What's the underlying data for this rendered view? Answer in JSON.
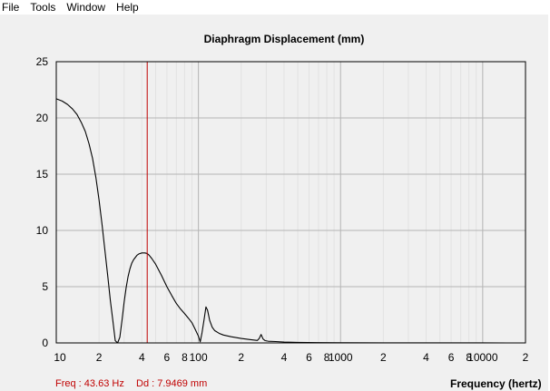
{
  "menu": {
    "items": [
      "File",
      "Tools",
      "Window",
      "Help"
    ]
  },
  "status": {
    "freq": "Freq : 43.63 Hz",
    "dd": "Dd : 7.9469 mm"
  },
  "chart_data": {
    "type": "line",
    "title": "Diaphragm Displacement (mm)",
    "xlabel": "Frequency (hertz)",
    "ylabel": "",
    "xscale": "log",
    "xlim": [
      10,
      20000
    ],
    "ylim": [
      0,
      25
    ],
    "y_ticks": [
      0,
      5,
      10,
      15,
      20,
      25
    ],
    "x_tick_labels": [
      {
        "value": 10,
        "label": "10"
      },
      {
        "value": 20,
        "label": "2"
      },
      {
        "value": 40,
        "label": "4"
      },
      {
        "value": 60,
        "label": "6"
      },
      {
        "value": 80,
        "label": "8"
      },
      {
        "value": 100,
        "label": "100"
      },
      {
        "value": 200,
        "label": "2"
      },
      {
        "value": 400,
        "label": "4"
      },
      {
        "value": 600,
        "label": "6"
      },
      {
        "value": 800,
        "label": "8"
      },
      {
        "value": 1000,
        "label": "1000"
      },
      {
        "value": 2000,
        "label": "2"
      },
      {
        "value": 4000,
        "label": "4"
      },
      {
        "value": 6000,
        "label": "6"
      },
      {
        "value": 8000,
        "label": "8"
      },
      {
        "value": 10000,
        "label": "10000"
      },
      {
        "value": 20000,
        "label": "2"
      }
    ],
    "grid": true,
    "cursor": {
      "x": 43.63,
      "color": "#c00000"
    },
    "series": [
      {
        "color": "#000000",
        "x": [
          10,
          11,
          12,
          13,
          14,
          15,
          16,
          17,
          18,
          19,
          20,
          21,
          22,
          23,
          24,
          25,
          26,
          27,
          28,
          29,
          30,
          31,
          32,
          33,
          34,
          35,
          36,
          37,
          38,
          40,
          42,
          43.6,
          45,
          47,
          50,
          55,
          60,
          65,
          70,
          75,
          80,
          85,
          90,
          95,
          100,
          103,
          106,
          110,
          113,
          116,
          120,
          125,
          130,
          140,
          150,
          170,
          200,
          230,
          260,
          268,
          276,
          285,
          295,
          310,
          350,
          400,
          500,
          700,
          1000,
          2000,
          5000,
          10000,
          15000
        ],
        "y": [
          21.7,
          21.5,
          21.2,
          20.8,
          20.3,
          19.6,
          18.8,
          17.7,
          16.4,
          14.7,
          12.7,
          10.5,
          8.2,
          6.0,
          3.8,
          2.0,
          0.2,
          0.0,
          0.5,
          2.0,
          3.6,
          4.9,
          5.9,
          6.6,
          7.1,
          7.4,
          7.6,
          7.8,
          7.9,
          8.0,
          8.0,
          7.95,
          7.8,
          7.5,
          7.0,
          6.0,
          5.0,
          4.2,
          3.5,
          3.0,
          2.6,
          2.2,
          1.8,
          1.2,
          0.6,
          0.1,
          0.9,
          2.2,
          3.2,
          2.9,
          2.0,
          1.4,
          1.1,
          0.85,
          0.7,
          0.55,
          0.4,
          0.3,
          0.22,
          0.4,
          0.75,
          0.35,
          0.2,
          0.15,
          0.12,
          0.08,
          0.05,
          0.03,
          0.02,
          0.01,
          0.005,
          0.002,
          0.001
        ]
      }
    ]
  }
}
